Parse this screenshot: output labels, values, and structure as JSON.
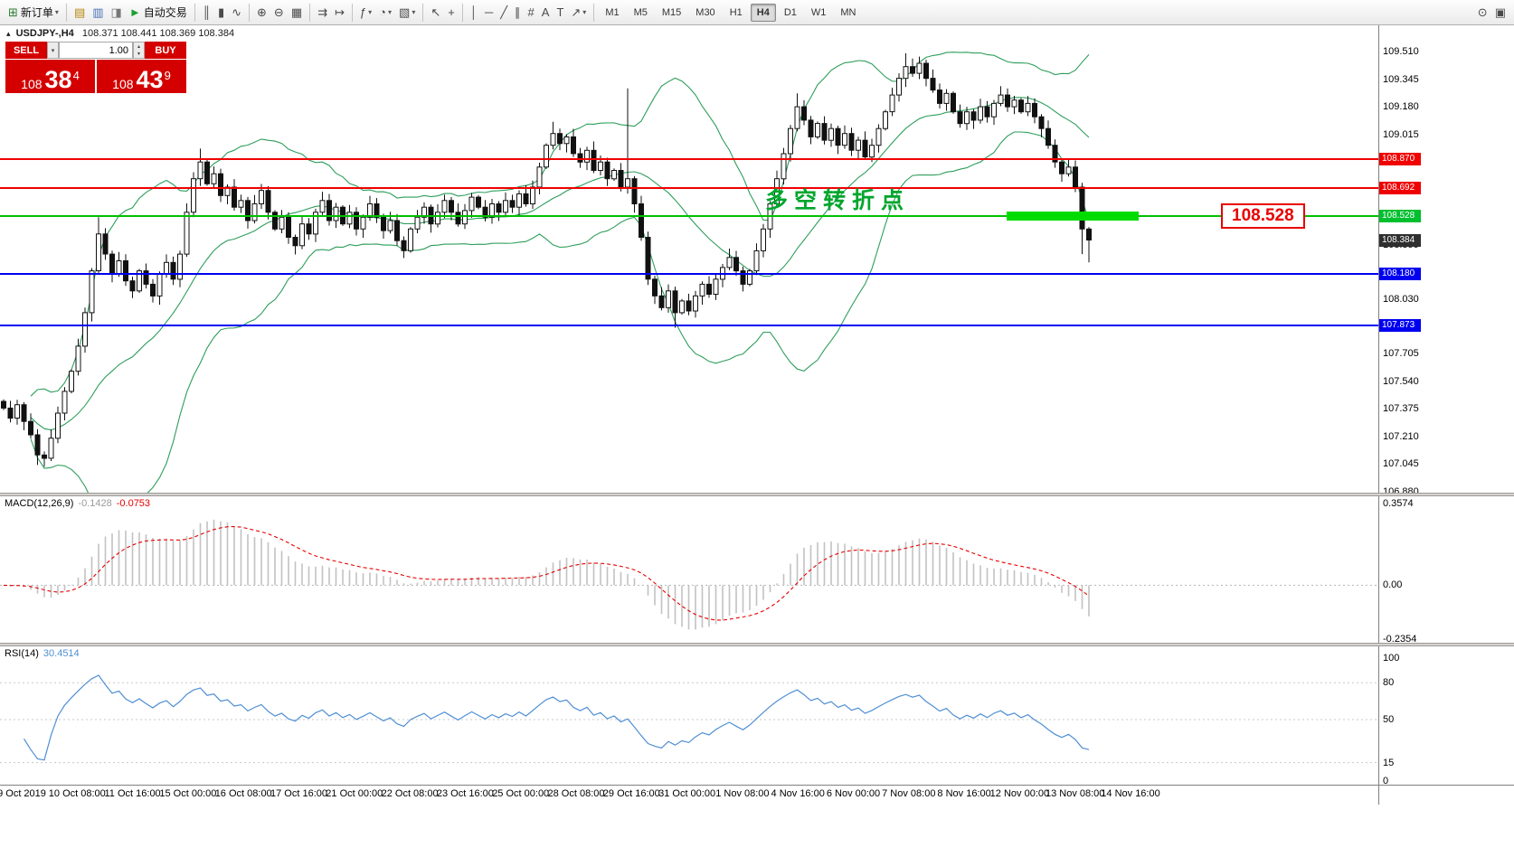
{
  "toolbar": {
    "caret_glyph": "▾",
    "groups": [
      {
        "items": [
          {
            "name": "new-order-button",
            "glyph": "⊞",
            "glyph_color": "#2f7d32",
            "label": "新订单",
            "caret": true
          }
        ]
      },
      {
        "items": [
          {
            "name": "market-watch-icon",
            "glyph": "▤",
            "glyph_color": "#b8860b"
          },
          {
            "name": "navigator-icon",
            "glyph": "▥",
            "glyph_color": "#4a6fb5"
          },
          {
            "name": "terminal-icon",
            "glyph": "◨",
            "glyph_color": "#777777"
          },
          {
            "name": "autotrading-button",
            "glyph": "►",
            "glyph_color": "#18a02c",
            "label": "自动交易"
          }
        ]
      },
      {
        "items": [
          {
            "name": "bar-chart-icon",
            "glyph": "║"
          },
          {
            "name": "candlestick-chart-icon",
            "glyph": "▮"
          },
          {
            "name": "line-chart-icon",
            "glyph": "∿"
          }
        ]
      },
      {
        "items": [
          {
            "name": "zoom-in-icon",
            "glyph": "⊕"
          },
          {
            "name": "zoom-out-icon",
            "glyph": "⊖"
          },
          {
            "name": "tile-windows-icon",
            "glyph": "▦"
          }
        ]
      },
      {
        "items": [
          {
            "name": "auto-scroll-icon",
            "glyph": "⇉"
          },
          {
            "name": "chart-shift-icon",
            "glyph": "↦"
          }
        ]
      },
      {
        "items": [
          {
            "name": "indicators-icon",
            "glyph": "ƒ",
            "caret": true
          },
          {
            "name": "periods-icon",
            "glyph": "◔",
            "caret": true
          },
          {
            "name": "templates-icon",
            "glyph": "▧",
            "caret": true
          }
        ]
      },
      {
        "items": [
          {
            "name": "cursor-icon",
            "glyph": "↖"
          },
          {
            "name": "crosshair-icon",
            "glyph": "+"
          }
        ]
      },
      {
        "items": [
          {
            "name": "vertical-line-icon",
            "glyph": "│"
          },
          {
            "name": "horizontal-line-icon",
            "glyph": "─"
          },
          {
            "name": "trendline-icon",
            "glyph": "╱"
          },
          {
            "name": "equidistant-channel-icon",
            "glyph": "∥"
          },
          {
            "name": "fibonacci-icon",
            "glyph": "#"
          },
          {
            "name": "text-icon",
            "glyph": "A"
          },
          {
            "name": "text-label-icon",
            "glyph": "T"
          },
          {
            "name": "arrow-objects-icon",
            "glyph": "↗",
            "caret": true
          }
        ]
      },
      {
        "timeframes": true
      },
      {
        "items": [
          {
            "name": "search-icon",
            "glyph": "⊙"
          },
          {
            "name": "chart-windows-icon",
            "glyph": "▣"
          }
        ],
        "right": true
      }
    ],
    "timeframes": [
      "M1",
      "M5",
      "M15",
      "M30",
      "H1",
      "H4",
      "D1",
      "W1",
      "MN"
    ],
    "active_timeframe": "H4"
  },
  "trade_panel": {
    "sell_label": "SELL",
    "buy_label": "BUY",
    "volume": "1.00",
    "sell_price_main": "108",
    "sell_price_pips": "38",
    "sell_price_sup": "4",
    "buy_price_main": "108",
    "buy_price_pips": "43",
    "buy_price_sup": "9"
  },
  "chart": {
    "header_marker": "▴",
    "symbol": "USDJPY-,H4",
    "ohlc": "108.371 108.441 108.369 108.384",
    "annotation_text": "多空转折点",
    "price_box": "108.528",
    "levels": [
      {
        "price": "108.870",
        "value": 108.87,
        "color": "#f00000",
        "line": true
      },
      {
        "price": "108.692",
        "value": 108.692,
        "color": "#f00000",
        "line": true
      },
      {
        "price": "108.528",
        "value": 108.528,
        "color": "#00c000",
        "tag": "#00bf2e",
        "line": true
      },
      {
        "price": "108.384",
        "value": 108.384,
        "color": "#2f2f2f",
        "line": false
      },
      {
        "price": "108.180",
        "value": 108.18,
        "color": "#0000f0",
        "line": true
      },
      {
        "price": "107.873",
        "value": 107.873,
        "color": "#0000f0",
        "line": true
      }
    ],
    "y_axis_labels": [
      "109.510",
      "109.345",
      "109.180",
      "109.015",
      "108.850",
      "108.685",
      "108.520",
      "108.355",
      "108.190",
      "108.030",
      "107.865",
      "107.705",
      "107.540",
      "107.375",
      "107.210",
      "107.045",
      "106.880"
    ],
    "x_axis_labels": [
      "9 Oct 2019",
      "10 Oct 08:00",
      "11 Oct 16:00",
      "15 Oct 00:00",
      "16 Oct 08:00",
      "17 Oct 16:00",
      "21 Oct 00:00",
      "22 Oct 08:00",
      "23 Oct 16:00",
      "25 Oct 00:00",
      "28 Oct 08:00",
      "29 Oct 16:00",
      "31 Oct 00:00",
      "1 Nov 08:00",
      "4 Nov 16:00",
      "6 Nov 00:00",
      "7 Nov 08:00",
      "8 Nov 16:00",
      "12 Nov 00:00",
      "13 Nov 08:00",
      "14 Nov 16:00"
    ]
  },
  "macd": {
    "name": "MACD(12,26,9)",
    "main_value": "-0.1428",
    "signal_value": "-0.0753",
    "axis_labels": [
      "0.3574",
      "0.00",
      "-0.2354"
    ],
    "axis_values": [
      0.3574,
      0,
      -0.2354
    ]
  },
  "rsi": {
    "name": "RSI(14)",
    "value": "30.4514",
    "axis_labels": [
      "100",
      "80",
      "50",
      "15",
      "0"
    ],
    "axis_values": [
      100,
      80,
      50,
      15,
      0
    ],
    "levels": [
      80,
      50,
      15
    ]
  },
  "chart_data": {
    "type": "candlestick",
    "symbol": "USDJPY",
    "timeframe": "H4",
    "title": "USDJPY-,H4",
    "ohlc_header": {
      "open": 108.371,
      "high": 108.441,
      "low": 108.369,
      "close": 108.384
    },
    "y_range": [
      106.88,
      109.51
    ],
    "current_price": 108.384,
    "highlight_level": 108.528,
    "horizontal_levels": [
      108.87,
      108.692,
      108.528,
      108.18,
      107.873
    ],
    "closes": [
      107.38,
      107.32,
      107.4,
      107.3,
      107.22,
      107.1,
      107.08,
      107.2,
      107.35,
      107.48,
      107.6,
      107.75,
      107.95,
      108.2,
      108.42,
      108.3,
      108.18,
      108.26,
      108.14,
      108.08,
      108.2,
      108.12,
      108.05,
      108.18,
      108.25,
      108.15,
      108.3,
      108.55,
      108.75,
      108.85,
      108.72,
      108.78,
      108.65,
      108.7,
      108.58,
      108.62,
      108.5,
      108.6,
      108.68,
      108.55,
      108.45,
      108.52,
      108.4,
      108.35,
      108.48,
      108.42,
      108.55,
      108.62,
      108.5,
      108.58,
      108.48,
      108.55,
      108.45,
      108.52,
      108.6,
      108.52,
      108.44,
      108.5,
      108.38,
      108.32,
      108.45,
      108.52,
      108.58,
      108.48,
      108.55,
      108.62,
      108.55,
      108.48,
      108.56,
      108.64,
      108.58,
      108.52,
      108.6,
      108.55,
      108.62,
      108.58,
      108.66,
      108.6,
      108.7,
      108.82,
      108.95,
      109.02,
      108.96,
      109.0,
      108.9,
      108.85,
      108.92,
      108.8,
      108.85,
      108.75,
      108.8,
      108.7,
      108.75,
      108.6,
      108.4,
      108.15,
      108.05,
      107.98,
      108.08,
      107.95,
      108.02,
      107.96,
      108.05,
      108.12,
      108.06,
      108.15,
      108.22,
      108.28,
      108.2,
      108.12,
      108.2,
      108.32,
      108.45,
      108.6,
      108.75,
      108.9,
      109.05,
      109.18,
      109.1,
      109.0,
      109.08,
      108.98,
      109.05,
      108.95,
      109.02,
      108.92,
      108.98,
      108.88,
      108.95,
      109.05,
      109.15,
      109.25,
      109.35,
      109.42,
      109.38,
      109.44,
      109.35,
      109.28,
      109.2,
      109.26,
      109.15,
      109.08,
      109.15,
      109.1,
      109.18,
      109.12,
      109.2,
      109.25,
      109.18,
      109.22,
      109.15,
      109.2,
      109.12,
      109.05,
      108.95,
      108.85,
      108.78,
      108.82,
      108.7,
      108.45,
      108.384
    ],
    "wick_high_overrides": {
      "14": 108.52,
      "29": 108.93,
      "81": 109.09,
      "92": 109.29,
      "117": 109.26,
      "133": 109.5,
      "135": 109.48
    },
    "wick_low_overrides": {
      "5": 107.04,
      "6": 107.03,
      "99": 107.86,
      "159": 108.3,
      "160": 108.25
    },
    "indicators": {
      "bollinger_bands": {
        "period": 20,
        "deviation": 2,
        "color": "#2e9e5b"
      },
      "macd": {
        "fast": 12,
        "slow": 26,
        "signal": 9,
        "main": -0.1428,
        "signal_value": -0.0753,
        "range": [
          -0.2354,
          0.3574
        ]
      },
      "rsi": {
        "period": 14,
        "value": 30.4514,
        "range": [
          0,
          100
        ]
      }
    }
  }
}
